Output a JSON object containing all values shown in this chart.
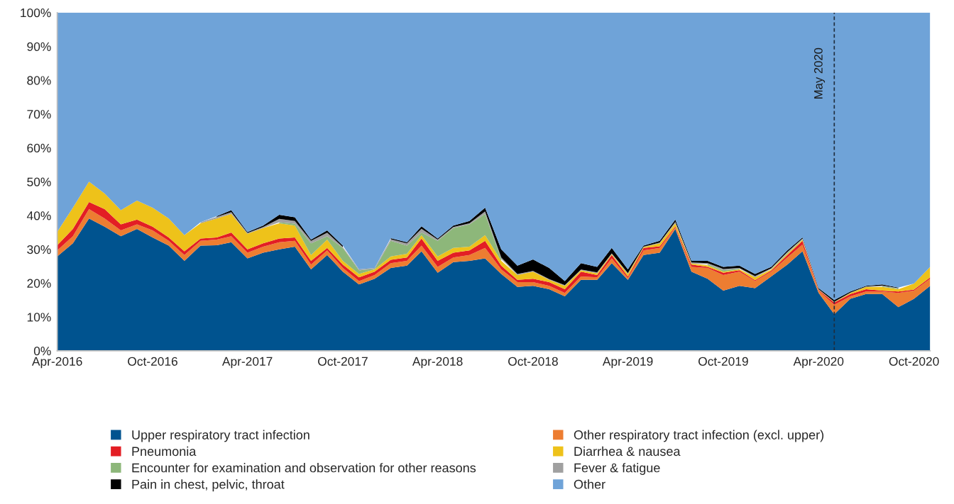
{
  "chart_data": {
    "type": "area",
    "stacked": true,
    "legend": "bottom",
    "grid": false,
    "x": [
      "2016-04",
      "2016-05",
      "2016-06",
      "2016-07",
      "2016-08",
      "2016-09",
      "2016-10",
      "2016-11",
      "2016-12",
      "2017-01",
      "2017-02",
      "2017-03",
      "2017-04",
      "2017-05",
      "2017-06",
      "2017-07",
      "2017-08",
      "2017-09",
      "2017-10",
      "2017-11",
      "2017-12",
      "2018-01",
      "2018-02",
      "2018-03",
      "2018-04",
      "2018-05",
      "2018-06",
      "2018-07",
      "2018-08",
      "2018-09",
      "2018-10",
      "2018-11",
      "2018-12",
      "2019-01",
      "2019-02",
      "2019-03",
      "2019-04",
      "2019-05",
      "2019-06",
      "2019-07",
      "2019-08",
      "2019-09",
      "2019-10",
      "2019-11",
      "2019-12",
      "2020-01",
      "2020-02",
      "2020-03",
      "2020-04",
      "2020-05",
      "2020-06",
      "2020-07",
      "2020-08",
      "2020-09",
      "2020-10",
      "2020-11"
    ],
    "xlim": [
      "2016-04",
      "2020-11"
    ],
    "xticks": [
      {
        "value": "2016-04",
        "label": "Apr-2016"
      },
      {
        "value": "2016-10",
        "label": "Oct-2016"
      },
      {
        "value": "2017-04",
        "label": "Apr-2017"
      },
      {
        "value": "2017-10",
        "label": "Oct-2017"
      },
      {
        "value": "2018-04",
        "label": "Apr-2018"
      },
      {
        "value": "2018-10",
        "label": "Oct-2018"
      },
      {
        "value": "2019-04",
        "label": "Apr-2019"
      },
      {
        "value": "2019-10",
        "label": "Oct-2019"
      },
      {
        "value": "2020-04",
        "label": "Apr-2020"
      },
      {
        "value": "2020-10",
        "label": "Oct-2020"
      }
    ],
    "ylim": [
      0,
      100
    ],
    "yticks": [
      {
        "value": 0,
        "label": "0%"
      },
      {
        "value": 10,
        "label": "10%"
      },
      {
        "value": 20,
        "label": "20%"
      },
      {
        "value": 30,
        "label": "30%"
      },
      {
        "value": 40,
        "label": "40%"
      },
      {
        "value": 50,
        "label": "50%"
      },
      {
        "value": 60,
        "label": "60%"
      },
      {
        "value": 70,
        "label": "70%"
      },
      {
        "value": 80,
        "label": "80%"
      },
      {
        "value": 90,
        "label": "90%"
      },
      {
        "value": 100,
        "label": "100%"
      }
    ],
    "ref_lines": [
      {
        "axis": "x",
        "value": "2020-05",
        "label": "May 2020",
        "color": "#1f2d3d",
        "line_style": "dashed"
      }
    ],
    "series": [
      {
        "name": "Upper respiratory tract infection",
        "color": "#00538f",
        "values": [
          27.9,
          31.8,
          39.1,
          36.7,
          33.9,
          36.0,
          33.5,
          31.1,
          26.6,
          31.1,
          31.2,
          32.1,
          27.3,
          29.0,
          30.0,
          30.8,
          24.1,
          28.3,
          23.4,
          19.6,
          21.3,
          24.5,
          25.2,
          29.4,
          23.1,
          26.2,
          26.6,
          27.3,
          22.7,
          18.9,
          19.2,
          18.2,
          16.1,
          21.0,
          21.0,
          25.9,
          21.0,
          28.3,
          29.0,
          36.0,
          23.4,
          21.3,
          17.8,
          19.2,
          18.5,
          22.0,
          25.5,
          29.4,
          17.1,
          10.8,
          15.4,
          16.8,
          16.8,
          12.9,
          15.4,
          19.2
        ]
      },
      {
        "name": "Other respiratory tract infection (excl. upper)",
        "color": "#ed7d31",
        "values": [
          1.8,
          2.1,
          2.8,
          2.4,
          1.7,
          1.4,
          2.1,
          1.4,
          1.7,
          1.4,
          1.7,
          1.8,
          1.7,
          1.8,
          2.1,
          1.7,
          1.4,
          1.4,
          1.1,
          1.0,
          1.1,
          1.4,
          1.4,
          1.7,
          1.7,
          1.4,
          1.7,
          3.1,
          1.4,
          1.4,
          1.1,
          1.0,
          1.0,
          1.0,
          0.7,
          1.4,
          0.5,
          1.4,
          1.4,
          0.5,
          1.4,
          3.2,
          4.6,
          4.2,
          2.1,
          1.4,
          2.1,
          2.0,
          0.7,
          2.8,
          0.7,
          0.7,
          0.7,
          4.2,
          2.4,
          2.1
        ]
      },
      {
        "name": "Pneumonia",
        "color": "#e31e24",
        "values": [
          1.5,
          2.1,
          2.1,
          2.8,
          1.8,
          1.4,
          1.1,
          1.0,
          1.1,
          0.7,
          0.6,
          1.1,
          1.0,
          1.0,
          1.1,
          1.0,
          1.1,
          0.7,
          1.0,
          1.1,
          1.0,
          1.0,
          1.0,
          2.1,
          1.8,
          1.4,
          1.4,
          2.1,
          1.1,
          0.7,
          1.0,
          1.1,
          1.1,
          1.4,
          0.7,
          1.0,
          0.5,
          0.7,
          0.5,
          0.3,
          0.7,
          0.3,
          0.7,
          0.4,
          0.3,
          0.3,
          0.7,
          1.1,
          0.2,
          0.7,
          0.7,
          0.7,
          0.3,
          0.4,
          0.3,
          0.4
        ]
      },
      {
        "name": "Diarrhea & nausea",
        "color": "#eec21a",
        "values": [
          4.0,
          6.3,
          6.0,
          4.6,
          4.2,
          5.6,
          5.6,
          5.6,
          4.8,
          4.5,
          5.6,
          5.5,
          4.6,
          4.5,
          4.5,
          3.5,
          1.7,
          2.5,
          1.1,
          1.0,
          0.7,
          1.0,
          1.1,
          1.0,
          1.3,
          1.4,
          1.1,
          1.7,
          1.4,
          1.4,
          2.1,
          0.7,
          1.0,
          0.4,
          0.5,
          0.3,
          0.7,
          0.3,
          0.9,
          0.9,
          0.3,
          0.5,
          0.3,
          0.3,
          0.8,
          0.3,
          0.4,
          0.3,
          0.1,
          0.1,
          0.3,
          0.7,
          1.1,
          0.7,
          1.8,
          3.1
        ]
      },
      {
        "name": "Encounter for examination and observation for other reasons",
        "color": "#8db77a",
        "values": [
          null,
          null,
          null,
          null,
          null,
          null,
          null,
          null,
          null,
          null,
          null,
          null,
          null,
          null,
          0.3,
          0.6,
          3.5,
          1.0,
          3.8,
          1.1,
          0.1,
          4.6,
          2.4,
          0.8,
          4.6,
          5.9,
          6.6,
          6.3,
          0.5,
          null,
          null,
          null,
          null,
          null,
          null,
          null,
          null,
          null,
          null,
          null,
          null,
          0.3,
          0.4,
          0.2,
          null,
          0.2,
          0.2,
          0.2,
          null,
          null,
          null,
          null,
          0.2,
          0.2,
          null,
          null
        ]
      },
      {
        "name": "Fever & fatigue",
        "color": "#a0a0a0",
        "values": [
          null,
          null,
          null,
          null,
          null,
          null,
          null,
          null,
          null,
          0.3,
          0.5,
          0.5,
          0.2,
          0.3,
          1.0,
          0.8,
          0.7,
          1.0,
          0.3,
          0.3,
          0.3,
          0.5,
          0.7,
          1.1,
          0.4,
          0.3,
          0.3,
          0.7,
          0.5,
          0.3,
          0.2,
          0.2,
          0.2,
          0.2,
          0.3,
          0.2,
          0.3,
          0.1,
          0.2,
          0.4,
          0.3,
          0.3,
          0.4,
          0.2,
          0.4,
          0.2,
          0.3,
          0.2,
          0.1,
          0.1,
          0.1,
          0.1,
          0.2,
          0.1,
          null,
          null
        ]
      },
      {
        "name": "Pain in chest, pelvic, throat",
        "color": "#000000",
        "values": [
          null,
          null,
          null,
          null,
          null,
          null,
          null,
          null,
          null,
          null,
          0.2,
          0.6,
          0.3,
          0.4,
          1.2,
          1.1,
          0.4,
          0.7,
          0.4,
          null,
          null,
          0.3,
          0.3,
          0.7,
          0.3,
          0.4,
          0.7,
          1.1,
          2.4,
          2.5,
          3.4,
          3.3,
          1.2,
          1.9,
          1.6,
          1.6,
          1.1,
          0.3,
          0.5,
          0.7,
          0.5,
          0.7,
          0.6,
          0.7,
          0.6,
          0.4,
          0.5,
          0.3,
          0.3,
          0.5,
          0.3,
          0.2,
          0.3,
          0.2,
          null,
          null
        ]
      },
      {
        "name": "Other",
        "color": "#6fa3d8",
        "values": [
          64.8,
          57.7,
          50.0,
          53.5,
          58.4,
          55.6,
          57.7,
          60.9,
          65.8,
          62.0,
          60.2,
          58.4,
          64.9,
          63.0,
          59.8,
          60.5,
          67.1,
          64.4,
          68.9,
          75.9,
          75.5,
          66.7,
          67.9,
          63.2,
          66.8,
          63.0,
          61.6,
          57.7,
          70.0,
          74.8,
          73.0,
          75.5,
          79.4,
          74.1,
          75.2,
          69.6,
          75.9,
          68.9,
          67.5,
          61.2,
          73.4,
          73.4,
          75.2,
          74.8,
          77.3,
          75.2,
          70.3,
          66.5,
          81.5,
          85.0,
          82.5,
          80.8,
          80.4,
          81.3,
          80.1,
          75.2
        ]
      }
    ]
  }
}
